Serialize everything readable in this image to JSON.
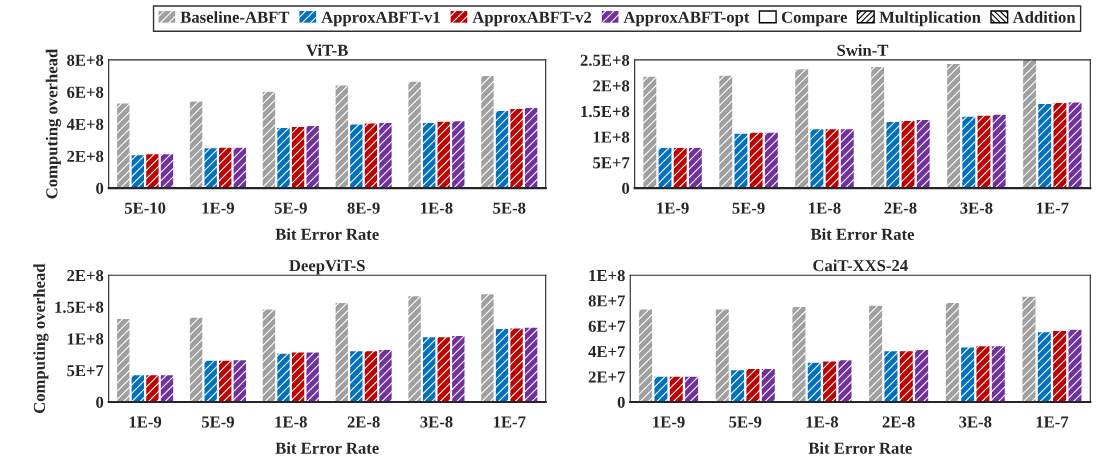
{
  "chart_data": [
    {
      "type": "bar",
      "title": "ViT-B",
      "xlabel": "Bit Error Rate",
      "ylabel": "Computing overhead",
      "categories": [
        "5E-10",
        "1E-9",
        "5E-9",
        "8E-9",
        "1E-8",
        "5E-8"
      ],
      "series": [
        {
          "name": "Baseline-ABFT",
          "color": "#a0a0a0",
          "values": [
            528000000.0,
            541000000.0,
            601000000.0,
            640000000.0,
            664000000.0,
            700000000.0
          ]
        },
        {
          "name": "ApproxABFT-v1",
          "color": "#0070c0",
          "values": [
            205000000.0,
            248000000.0,
            375000000.0,
            397000000.0,
            407000000.0,
            481000000.0
          ]
        },
        {
          "name": "ApproxABFT-v2",
          "color": "#c00000",
          "values": [
            211000000.0,
            252000000.0,
            381000000.0,
            403000000.0,
            414000000.0,
            494000000.0
          ]
        },
        {
          "name": "ApproxABFT-opt",
          "color": "#7030a0",
          "values": [
            211000000.0,
            252000000.0,
            388000000.0,
            407000000.0,
            418000000.0,
            500000000.0
          ]
        }
      ],
      "ylim": [
        0,
        800000000.0
      ],
      "yticks": [
        0,
        {
          "value": 200000000.0,
          "label": "2E+8"
        },
        {
          "value": 400000000.0,
          "label": "4E+8"
        },
        {
          "value": 600000000.0,
          "label": "6E+8"
        },
        {
          "value": 800000000.0,
          "label": "8E+8"
        }
      ],
      "legend": "top",
      "annotations": [
        "Compare",
        "Multiplication",
        "Addition"
      ]
    },
    {
      "type": "bar",
      "title": "Swin-T",
      "xlabel": "Bit Error Rate",
      "categories": [
        "1E-9",
        "5E-9",
        "1E-8",
        "2E-8",
        "3E-8",
        "1E-7"
      ],
      "series": [
        {
          "color": "#a0a0a0",
          "values": [
            217000000.0,
            219000000.0,
            232000000.0,
            236000000.0,
            242000000.0,
            250000000.0
          ]
        },
        {
          "color": "#0070c0",
          "values": [
            78000000.0,
            106000000.0,
            115000000.0,
            129000000.0,
            139000000.0,
            164000000.0
          ]
        },
        {
          "color": "#c00000",
          "values": [
            78000000.0,
            108000000.0,
            115000000.0,
            131000000.0,
            141000000.0,
            166000000.0
          ]
        },
        {
          "color": "#7030a0",
          "values": [
            78000000.0,
            108000000.0,
            115000000.0,
            133000000.0,
            143000000.0,
            167000000.0
          ]
        }
      ],
      "ylim": [
        0,
        250000000.0
      ],
      "yticks": [
        0,
        {
          "value": 50000000.0,
          "label": "5E+7"
        },
        {
          "value": 100000000.0,
          "label": "1E+8"
        },
        {
          "value": 150000000.0,
          "label": "1.5E+8"
        },
        {
          "value": 200000000.0,
          "label": "2E+8"
        },
        {
          "value": 250000000.0,
          "label": "2.5E+8"
        }
      ]
    },
    {
      "type": "bar",
      "title": "DeepViT-S",
      "xlabel": "Bit Error Rate",
      "ylabel": "Computing overhead",
      "categories": [
        "1E-9",
        "5E-9",
        "1E-8",
        "2E-8",
        "3E-8",
        "1E-7"
      ],
      "series": [
        {
          "color": "#a0a0a0",
          "values": [
            131000000.0,
            133000000.0,
            146000000.0,
            156000000.0,
            167000000.0,
            170000000.0
          ]
        },
        {
          "color": "#0070c0",
          "values": [
            42000000.0,
            65000000.0,
            76000000.0,
            80000000.0,
            102000000.0,
            115000000.0
          ]
        },
        {
          "color": "#c00000",
          "values": [
            42000000.0,
            65000000.0,
            78000000.0,
            80000000.0,
            102000000.0,
            116000000.0
          ]
        },
        {
          "color": "#7030a0",
          "values": [
            42000000.0,
            66000000.0,
            78000000.0,
            82000000.0,
            104000000.0,
            117000000.0
          ]
        }
      ],
      "ylim": [
        0,
        200000000.0
      ],
      "yticks": [
        0,
        {
          "value": 50000000.0,
          "label": "5E+7"
        },
        {
          "value": 100000000.0,
          "label": "1E+8"
        },
        {
          "value": 150000000.0,
          "label": "1.5E+8"
        },
        {
          "value": 200000000.0,
          "label": "2E+8"
        }
      ]
    },
    {
      "type": "bar",
      "title": "CaiT-XXS-24",
      "xlabel": "Bit Error Rate",
      "categories": [
        "1E-9",
        "5E-9",
        "1E-8",
        "2E-8",
        "3E-8",
        "1E-7"
      ],
      "series": [
        {
          "color": "#a0a0a0",
          "values": [
            73000000.0,
            73000000.0,
            75000000.0,
            76000000.0,
            78000000.0,
            83000000.0
          ]
        },
        {
          "color": "#0070c0",
          "values": [
            20000000.0,
            25000000.0,
            31000000.0,
            40000000.0,
            43000000.0,
            55000000.0
          ]
        },
        {
          "color": "#c00000",
          "values": [
            20000000.0,
            26000000.0,
            32000000.0,
            40000000.0,
            44000000.0,
            56000000.0
          ]
        },
        {
          "color": "#7030a0",
          "values": [
            20000000.0,
            26000000.0,
            33000000.0,
            41000000.0,
            44000000.0,
            57000000.0
          ]
        }
      ],
      "ylim": [
        0,
        100000000.0
      ],
      "yticks": [
        0,
        {
          "value": 20000000.0,
          "label": "2E+7"
        },
        {
          "value": 40000000.0,
          "label": "4E+7"
        },
        {
          "value": 60000000.0,
          "label": "6E+7"
        },
        {
          "value": 80000000.0,
          "label": "8E+7"
        },
        {
          "value": 100000000.0,
          "label": "1E+8"
        }
      ]
    }
  ]
}
